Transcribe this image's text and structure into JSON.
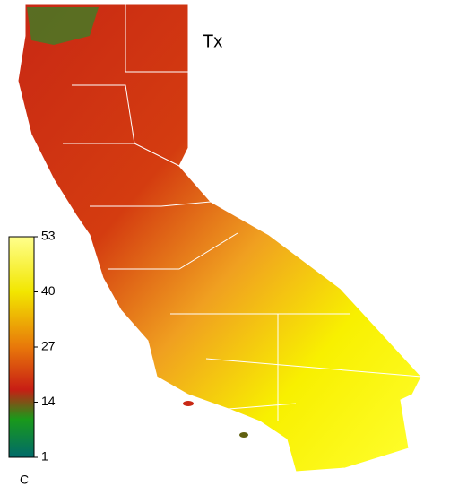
{
  "title": "Tx",
  "colorbar": {
    "lim": [
      1,
      53
    ],
    "ticks": [
      1,
      14,
      27,
      40,
      53
    ],
    "unit": "C",
    "stops": [
      {
        "value": 1,
        "color": "#006a6a"
      },
      {
        "value": 10,
        "color": "#1a9a1a"
      },
      {
        "value": 17,
        "color": "#c81e14"
      },
      {
        "value": 27,
        "color": "#e8780a"
      },
      {
        "value": 40,
        "color": "#f2e600"
      },
      {
        "value": 53,
        "color": "#ffff8c"
      }
    ]
  }
}
